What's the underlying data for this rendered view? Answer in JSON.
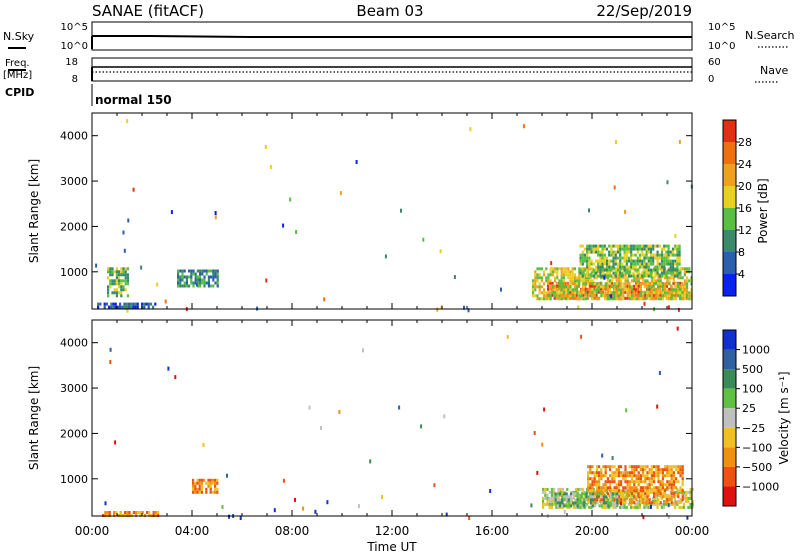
{
  "header": {
    "title": "SANAE (fitACF)",
    "beam": "Beam 03",
    "date": "22/Sep/2019"
  },
  "top_panels": {
    "nsky_label": "N.Sky",
    "nsky_ticks": [
      "10^5",
      "10^0"
    ],
    "nsearch_label": "N.Search",
    "freq_label_1": "Freq.",
    "freq_label_2": "[MHz]",
    "freq_ticks": [
      "18",
      "8"
    ],
    "nave_label": "Nave",
    "nave_ticks": [
      "60",
      "0"
    ],
    "cpid_label": "CPID",
    "cpid_value": "normal 150"
  },
  "chart_data": [
    {
      "type": "heatmap",
      "name": "power",
      "xlabel": "Time UT",
      "ylabel": "Slant Range [km]",
      "x_ticks": [
        "00:00",
        "04:00",
        "08:00",
        "12:00",
        "16:00",
        "20:00",
        "00:00"
      ],
      "y_ticks": [
        "1000",
        "2000",
        "3000",
        "4000"
      ],
      "xlim_hours": [
        0,
        24
      ],
      "ylim_km": [
        180,
        4500
      ],
      "colorbar": {
        "label": "Power [dB]",
        "ticks": [
          "4",
          "8",
          "12",
          "16",
          "20",
          "24",
          "28"
        ],
        "colors": [
          "#0a22f0",
          "#2a5fb0",
          "#3a8a6a",
          "#58c040",
          "#e8d020",
          "#f0a020",
          "#f07010",
          "#e03010"
        ]
      },
      "regions": [
        {
          "t0": 18.2,
          "t1": 23.8,
          "r0": 430,
          "r1": 780,
          "level": 6
        },
        {
          "t0": 17.6,
          "t1": 24.0,
          "r0": 380,
          "r1": 1100,
          "level": 4
        },
        {
          "t0": 19.5,
          "t1": 23.5,
          "r0": 900,
          "r1": 1600,
          "level": 3
        },
        {
          "t0": 0.2,
          "t1": 2.5,
          "r0": 200,
          "r1": 320,
          "level": 1
        },
        {
          "t0": 0.6,
          "t1": 1.4,
          "r0": 500,
          "r1": 1100,
          "level": 3
        },
        {
          "t0": 3.4,
          "t1": 5.0,
          "r0": 700,
          "r1": 1050,
          "level": 2
        }
      ]
    },
    {
      "type": "heatmap",
      "name": "velocity",
      "xlabel": "Time UT",
      "ylabel": "Slant Range [km]",
      "x_ticks": [
        "00:00",
        "04:00",
        "08:00",
        "12:00",
        "16:00",
        "20:00",
        "00:00"
      ],
      "y_ticks": [
        "1000",
        "2000",
        "3000",
        "4000"
      ],
      "xlim_hours": [
        0,
        24
      ],
      "ylim_km": [
        180,
        4500
      ],
      "colorbar": {
        "label": "Velocity [m s⁻¹]",
        "ticks": [
          "1000",
          "500",
          "100",
          "25",
          "−25",
          "−100",
          "−500",
          "−1000"
        ],
        "colors": [
          "#1030d0",
          "#3060a0",
          "#3a8a5a",
          "#60c040",
          "#c0c0c0",
          "#f0c020",
          "#f09010",
          "#f05010",
          "#e01010"
        ]
      },
      "regions": [
        {
          "t0": 18.0,
          "t1": 24.0,
          "r0": 400,
          "r1": 800,
          "level": 4
        },
        {
          "t0": 19.8,
          "t1": 23.6,
          "r0": 500,
          "r1": 1300,
          "level": 6
        },
        {
          "t0": 18.5,
          "t1": 21.0,
          "r0": 400,
          "r1": 700,
          "level": 3
        },
        {
          "t0": 0.4,
          "t1": 2.6,
          "r0": 180,
          "r1": 290,
          "level": 6
        },
        {
          "t0": 4.0,
          "t1": 5.0,
          "r0": 700,
          "r1": 1000,
          "level": 6
        }
      ]
    }
  ]
}
